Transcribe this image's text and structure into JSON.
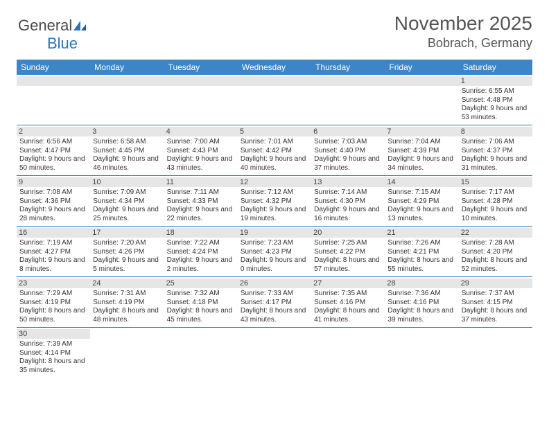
{
  "logo": {
    "word1": "General",
    "word2": "Blue"
  },
  "title": "November 2025",
  "location": "Bobrach, Germany",
  "header_color": "#3d85c6",
  "rule_color": "#2e75b6",
  "day_bg": "#e6e6e6",
  "font_family": "Arial, Helvetica, sans-serif",
  "weekdays": [
    "Sunday",
    "Monday",
    "Tuesday",
    "Wednesday",
    "Thursday",
    "Friday",
    "Saturday"
  ],
  "weeks": [
    [
      null,
      null,
      null,
      null,
      null,
      null,
      {
        "n": "1",
        "sunrise": "Sunrise: 6:55 AM",
        "sunset": "Sunset: 4:48 PM",
        "daylight": "Daylight: 9 hours and 53 minutes."
      }
    ],
    [
      {
        "n": "2",
        "sunrise": "Sunrise: 6:56 AM",
        "sunset": "Sunset: 4:47 PM",
        "daylight": "Daylight: 9 hours and 50 minutes."
      },
      {
        "n": "3",
        "sunrise": "Sunrise: 6:58 AM",
        "sunset": "Sunset: 4:45 PM",
        "daylight": "Daylight: 9 hours and 46 minutes."
      },
      {
        "n": "4",
        "sunrise": "Sunrise: 7:00 AM",
        "sunset": "Sunset: 4:43 PM",
        "daylight": "Daylight: 9 hours and 43 minutes."
      },
      {
        "n": "5",
        "sunrise": "Sunrise: 7:01 AM",
        "sunset": "Sunset: 4:42 PM",
        "daylight": "Daylight: 9 hours and 40 minutes."
      },
      {
        "n": "6",
        "sunrise": "Sunrise: 7:03 AM",
        "sunset": "Sunset: 4:40 PM",
        "daylight": "Daylight: 9 hours and 37 minutes."
      },
      {
        "n": "7",
        "sunrise": "Sunrise: 7:04 AM",
        "sunset": "Sunset: 4:39 PM",
        "daylight": "Daylight: 9 hours and 34 minutes."
      },
      {
        "n": "8",
        "sunrise": "Sunrise: 7:06 AM",
        "sunset": "Sunset: 4:37 PM",
        "daylight": "Daylight: 9 hours and 31 minutes."
      }
    ],
    [
      {
        "n": "9",
        "sunrise": "Sunrise: 7:08 AM",
        "sunset": "Sunset: 4:36 PM",
        "daylight": "Daylight: 9 hours and 28 minutes."
      },
      {
        "n": "10",
        "sunrise": "Sunrise: 7:09 AM",
        "sunset": "Sunset: 4:34 PM",
        "daylight": "Daylight: 9 hours and 25 minutes."
      },
      {
        "n": "11",
        "sunrise": "Sunrise: 7:11 AM",
        "sunset": "Sunset: 4:33 PM",
        "daylight": "Daylight: 9 hours and 22 minutes."
      },
      {
        "n": "12",
        "sunrise": "Sunrise: 7:12 AM",
        "sunset": "Sunset: 4:32 PM",
        "daylight": "Daylight: 9 hours and 19 minutes."
      },
      {
        "n": "13",
        "sunrise": "Sunrise: 7:14 AM",
        "sunset": "Sunset: 4:30 PM",
        "daylight": "Daylight: 9 hours and 16 minutes."
      },
      {
        "n": "14",
        "sunrise": "Sunrise: 7:15 AM",
        "sunset": "Sunset: 4:29 PM",
        "daylight": "Daylight: 9 hours and 13 minutes."
      },
      {
        "n": "15",
        "sunrise": "Sunrise: 7:17 AM",
        "sunset": "Sunset: 4:28 PM",
        "daylight": "Daylight: 9 hours and 10 minutes."
      }
    ],
    [
      {
        "n": "16",
        "sunrise": "Sunrise: 7:19 AM",
        "sunset": "Sunset: 4:27 PM",
        "daylight": "Daylight: 9 hours and 8 minutes."
      },
      {
        "n": "17",
        "sunrise": "Sunrise: 7:20 AM",
        "sunset": "Sunset: 4:26 PM",
        "daylight": "Daylight: 9 hours and 5 minutes."
      },
      {
        "n": "18",
        "sunrise": "Sunrise: 7:22 AM",
        "sunset": "Sunset: 4:24 PM",
        "daylight": "Daylight: 9 hours and 2 minutes."
      },
      {
        "n": "19",
        "sunrise": "Sunrise: 7:23 AM",
        "sunset": "Sunset: 4:23 PM",
        "daylight": "Daylight: 9 hours and 0 minutes."
      },
      {
        "n": "20",
        "sunrise": "Sunrise: 7:25 AM",
        "sunset": "Sunset: 4:22 PM",
        "daylight": "Daylight: 8 hours and 57 minutes."
      },
      {
        "n": "21",
        "sunrise": "Sunrise: 7:26 AM",
        "sunset": "Sunset: 4:21 PM",
        "daylight": "Daylight: 8 hours and 55 minutes."
      },
      {
        "n": "22",
        "sunrise": "Sunrise: 7:28 AM",
        "sunset": "Sunset: 4:20 PM",
        "daylight": "Daylight: 8 hours and 52 minutes."
      }
    ],
    [
      {
        "n": "23",
        "sunrise": "Sunrise: 7:29 AM",
        "sunset": "Sunset: 4:19 PM",
        "daylight": "Daylight: 8 hours and 50 minutes."
      },
      {
        "n": "24",
        "sunrise": "Sunrise: 7:31 AM",
        "sunset": "Sunset: 4:19 PM",
        "daylight": "Daylight: 8 hours and 48 minutes."
      },
      {
        "n": "25",
        "sunrise": "Sunrise: 7:32 AM",
        "sunset": "Sunset: 4:18 PM",
        "daylight": "Daylight: 8 hours and 45 minutes."
      },
      {
        "n": "26",
        "sunrise": "Sunrise: 7:33 AM",
        "sunset": "Sunset: 4:17 PM",
        "daylight": "Daylight: 8 hours and 43 minutes."
      },
      {
        "n": "27",
        "sunrise": "Sunrise: 7:35 AM",
        "sunset": "Sunset: 4:16 PM",
        "daylight": "Daylight: 8 hours and 41 minutes."
      },
      {
        "n": "28",
        "sunrise": "Sunrise: 7:36 AM",
        "sunset": "Sunset: 4:16 PM",
        "daylight": "Daylight: 8 hours and 39 minutes."
      },
      {
        "n": "29",
        "sunrise": "Sunrise: 7:37 AM",
        "sunset": "Sunset: 4:15 PM",
        "daylight": "Daylight: 8 hours and 37 minutes."
      }
    ],
    [
      {
        "n": "30",
        "sunrise": "Sunrise: 7:39 AM",
        "sunset": "Sunset: 4:14 PM",
        "daylight": "Daylight: 8 hours and 35 minutes."
      },
      null,
      null,
      null,
      null,
      null,
      null
    ]
  ]
}
